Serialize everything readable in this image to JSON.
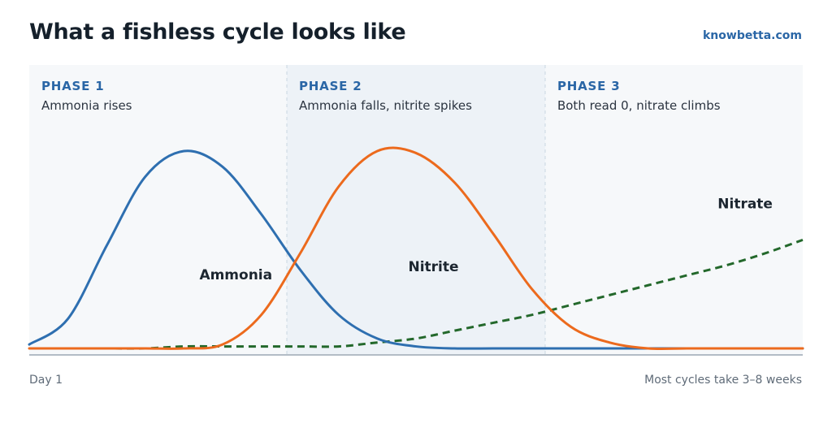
{
  "header": {
    "title": "What a fishless cycle looks like",
    "brand": "knowbetta.com"
  },
  "footer": {
    "left": "Day 1",
    "right": "Most cycles take 3–8 weeks"
  },
  "colors": {
    "ammonia": "#2e6fb0",
    "nitrite": "#ec6a1d",
    "nitrate": "#23682b",
    "phase_bg": "#f6f8fa",
    "phase_bg_highlight": "#edf2f7",
    "divider": "#c9d6e2",
    "baseline": "#b3bcc6"
  },
  "chart_data": {
    "type": "line",
    "x": [
      0,
      5,
      10,
      15,
      20,
      25,
      30,
      35,
      40,
      45,
      50,
      55,
      60,
      65,
      70,
      75,
      80,
      85,
      90,
      95,
      100
    ],
    "xlim": [
      0,
      100
    ],
    "ylim": [
      0,
      100
    ],
    "axes_shown": false,
    "grid": false,
    "phases": [
      {
        "title": "PHASE 1",
        "description": "Ammonia rises",
        "range": [
          0,
          33.3
        ],
        "highlight": false
      },
      {
        "title": "PHASE 2",
        "description": "Ammonia falls, nitrite spikes",
        "range": [
          33.3,
          66.7
        ],
        "highlight": true
      },
      {
        "title": "PHASE 3",
        "description": "Both read 0, nitrate climbs",
        "range": [
          66.7,
          100
        ],
        "highlight": false
      }
    ],
    "series": [
      {
        "name": "Ammonia",
        "color": "#2e6fb0",
        "style": "solid",
        "label_at": [
          22,
          35
        ],
        "values": [
          2,
          15,
          52,
          87,
          100,
          92,
          68,
          40,
          17,
          5,
          1,
          0,
          0,
          0,
          0,
          0,
          0,
          0,
          0,
          0,
          0
        ]
      },
      {
        "name": "Nitrite",
        "color": "#ec6a1d",
        "style": "solid",
        "label_at": [
          49,
          39
        ],
        "values": [
          0,
          0,
          0,
          0,
          0,
          2,
          17,
          48,
          82,
          100,
          99,
          84,
          58,
          30,
          11,
          3,
          0,
          0,
          0,
          0,
          0
        ]
      },
      {
        "name": "Nitrate",
        "color": "#23682b",
        "style": "dashed",
        "label_at": [
          89,
          71
        ],
        "values": [
          0,
          0,
          0,
          0,
          1,
          1,
          1,
          1,
          1,
          3,
          5,
          9,
          13,
          17,
          22,
          27,
          32,
          37,
          42,
          48,
          55
        ]
      }
    ]
  }
}
